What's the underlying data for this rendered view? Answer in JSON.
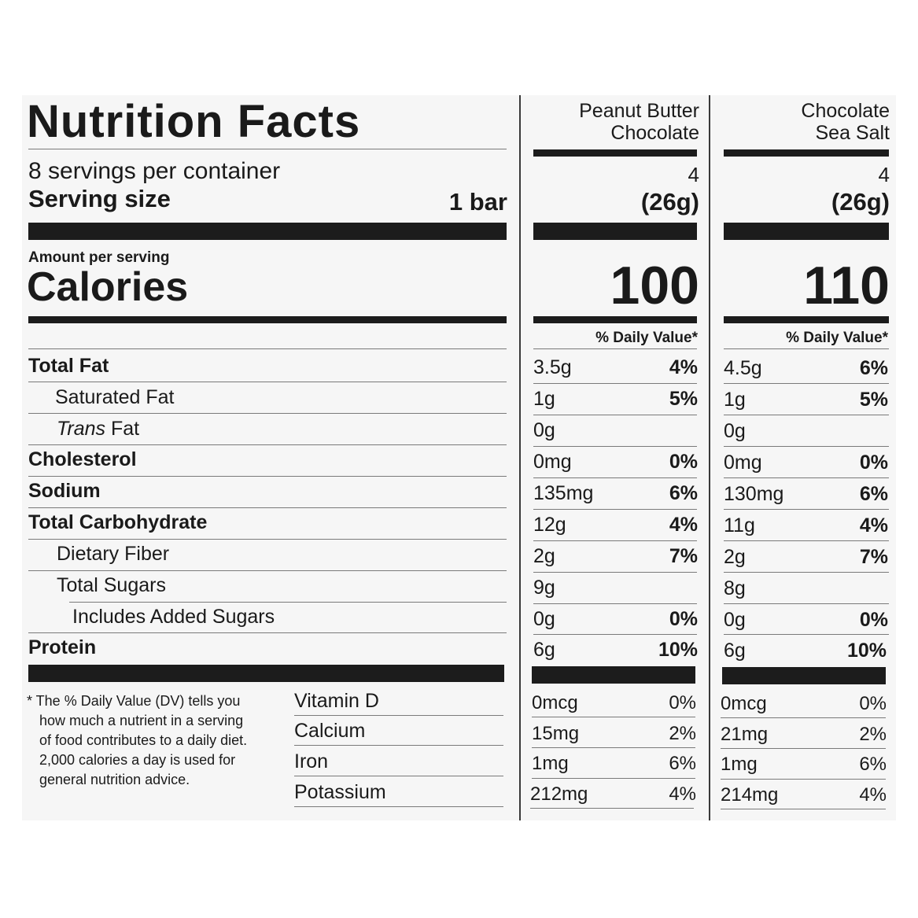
{
  "header": {
    "title": "Nutrition Facts",
    "servings": "8 servings per container",
    "serving_size_label": "Serving size",
    "serving_size_value": "1 bar",
    "amount_per_serving": "Amount per serving",
    "calories_label": "Calories",
    "dv_heading": "% Daily Value*"
  },
  "products": [
    {
      "name_line1": "Peanut Butter",
      "name_line2": "Chocolate",
      "serving_count": "4",
      "serving_weight": "(26g)",
      "calories": "100"
    },
    {
      "name_line1": "Chocolate",
      "name_line2": "Sea Salt",
      "serving_count": "4",
      "serving_weight": "(26g)",
      "calories": "110"
    }
  ],
  "nutrients": [
    {
      "label": "Total Fat",
      "p1_amount": "3.5g",
      "p1_dv": "4%",
      "p2_amount": "4.5g",
      "p2_dv": "6%"
    },
    {
      "label": "Saturated Fat",
      "p1_amount": "1g",
      "p1_dv": "5%",
      "p2_amount": "1g",
      "p2_dv": "5%"
    },
    {
      "label_italic": "Trans",
      "label_rest": " Fat",
      "p1_amount": "0g",
      "p1_dv": "",
      "p2_amount": "0g",
      "p2_dv": ""
    },
    {
      "label": "Cholesterol",
      "p1_amount": "0mg",
      "p1_dv": "0%",
      "p2_amount": "0mg",
      "p2_dv": "0%"
    },
    {
      "label": "Sodium",
      "p1_amount": "135mg",
      "p1_dv": "6%",
      "p2_amount": "130mg",
      "p2_dv": "6%"
    },
    {
      "label": "Total Carbohydrate",
      "p1_amount": "12g",
      "p1_dv": "4%",
      "p2_amount": "11g",
      "p2_dv": "4%"
    },
    {
      "label": "Dietary Fiber",
      "p1_amount": "2g",
      "p1_dv": "7%",
      "p2_amount": "2g",
      "p2_dv": "7%"
    },
    {
      "label": "Total Sugars",
      "p1_amount": "9g",
      "p1_dv": "",
      "p2_amount": "8g",
      "p2_dv": ""
    },
    {
      "label": "Includes Added Sugars",
      "p1_amount": "0g",
      "p1_dv": "0%",
      "p2_amount": "0g",
      "p2_dv": "0%"
    },
    {
      "label": "Protein",
      "p1_amount": "6g",
      "p1_dv": "10%",
      "p2_amount": "6g",
      "p2_dv": "10%"
    }
  ],
  "vitamins": [
    {
      "label": "Vitamin D",
      "p1_amount": "0mcg",
      "p1_dv": "0%",
      "p2_amount": "0mcg",
      "p2_dv": "0%"
    },
    {
      "label": "Calcium",
      "p1_amount": "15mg",
      "p1_dv": "2%",
      "p2_amount": "21mg",
      "p2_dv": "2%"
    },
    {
      "label": "Iron",
      "p1_amount": "1mg",
      "p1_dv": "6%",
      "p2_amount": "1mg",
      "p2_dv": "6%"
    },
    {
      "label": "Potassium",
      "p1_amount": "212mg",
      "p1_dv": "4%",
      "p2_amount": "214mg",
      "p2_dv": "4%"
    }
  ],
  "footnote": {
    "line1": "* The % Daily Value (DV) tells you",
    "line2": "how much a nutrient in a serving",
    "line3": "of food contributes to a daily diet.",
    "line4": "2,000 calories a day is used for",
    "line5": "general nutrition advice."
  }
}
